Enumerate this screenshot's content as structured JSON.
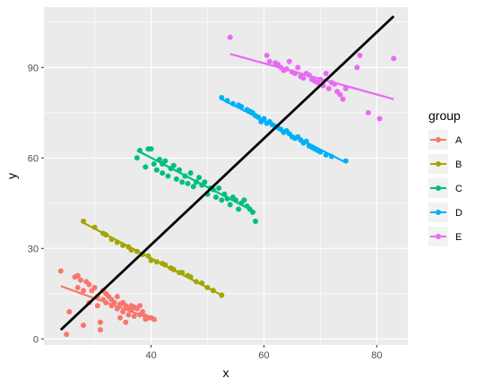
{
  "chart_data": {
    "type": "scatter",
    "xlabel": "x",
    "ylabel": "y",
    "xlim": [
      21,
      85.5
    ],
    "ylim": [
      -2,
      110
    ],
    "x_ticks": [
      40,
      60,
      80
    ],
    "y_ticks": [
      0,
      30,
      60,
      90
    ],
    "grid": true,
    "legend": {
      "title": "group",
      "position": "right"
    },
    "overall_line": {
      "x": [
        24,
        83
      ],
      "y": [
        3,
        107
      ],
      "color": "#000000"
    },
    "series": [
      {
        "name": "A",
        "color": "#F8766D",
        "fit": {
          "x": [
            24,
            41
          ],
          "y": [
            17.5,
            6
          ]
        },
        "points": [
          [
            24,
            22.5
          ],
          [
            25,
            1.5
          ],
          [
            25.5,
            9
          ],
          [
            26.5,
            20.5
          ],
          [
            27,
            21
          ],
          [
            27,
            17
          ],
          [
            27.5,
            19.5
          ],
          [
            28,
            16
          ],
          [
            28,
            4.5
          ],
          [
            28.5,
            19
          ],
          [
            29,
            12
          ],
          [
            29,
            18
          ],
          [
            29.5,
            16
          ],
          [
            30,
            17
          ],
          [
            30.5,
            11
          ],
          [
            30.5,
            14
          ],
          [
            31,
            3
          ],
          [
            31,
            5.5
          ],
          [
            31.5,
            16
          ],
          [
            31.5,
            13
          ],
          [
            32,
            12
          ],
          [
            32,
            15
          ],
          [
            32.5,
            14
          ],
          [
            33,
            11
          ],
          [
            33,
            13
          ],
          [
            33.5,
            12
          ],
          [
            34,
            14
          ],
          [
            34,
            10
          ],
          [
            34.5,
            7
          ],
          [
            34.5,
            11.5
          ],
          [
            35,
            12
          ],
          [
            35,
            9
          ],
          [
            35.5,
            11
          ],
          [
            35.5,
            5.5
          ],
          [
            36,
            10
          ],
          [
            36,
            8
          ],
          [
            36.5,
            11
          ],
          [
            36.5,
            9.5
          ],
          [
            37,
            10.5
          ],
          [
            37,
            7.5
          ],
          [
            37.5,
            10
          ],
          [
            38,
            8
          ],
          [
            38,
            11
          ],
          [
            38.5,
            9
          ],
          [
            39,
            6.5
          ],
          [
            39,
            7.5
          ],
          [
            39.5,
            7
          ],
          [
            40,
            7
          ],
          [
            40.5,
            6.5
          ]
        ]
      },
      {
        "name": "B",
        "color": "#A3A500",
        "fit": {
          "x": [
            28,
            52.5
          ],
          "y": [
            38.5,
            14.5
          ]
        },
        "points": [
          [
            28,
            39
          ],
          [
            30,
            37
          ],
          [
            31.5,
            35
          ],
          [
            32,
            34.5
          ],
          [
            33,
            33
          ],
          [
            34,
            32
          ],
          [
            35,
            31
          ],
          [
            36,
            30.5
          ],
          [
            36.5,
            29.5
          ],
          [
            37.5,
            29
          ],
          [
            38.5,
            28
          ],
          [
            39.5,
            27.5
          ],
          [
            40,
            26
          ],
          [
            41,
            25.5
          ],
          [
            42,
            25
          ],
          [
            42.5,
            24.5
          ],
          [
            43.5,
            23.5
          ],
          [
            44,
            23
          ],
          [
            45,
            22
          ],
          [
            45.5,
            22
          ],
          [
            46.5,
            21
          ],
          [
            47,
            20.5
          ],
          [
            48,
            19
          ],
          [
            49,
            18.5
          ],
          [
            50,
            17
          ],
          [
            51,
            16
          ],
          [
            52.5,
            14.5
          ]
        ]
      },
      {
        "name": "C",
        "color": "#00BF7D",
        "fit": {
          "x": [
            37.5,
            58.5
          ],
          "y": [
            62.5,
            42
          ]
        },
        "points": [
          [
            37.5,
            60
          ],
          [
            38,
            62.5
          ],
          [
            39,
            57
          ],
          [
            39.5,
            63
          ],
          [
            40,
            63
          ],
          [
            40.5,
            58
          ],
          [
            41,
            56
          ],
          [
            41.5,
            59.5
          ],
          [
            42,
            58
          ],
          [
            42,
            55
          ],
          [
            42.5,
            59
          ],
          [
            43,
            54
          ],
          [
            43.5,
            56.5
          ],
          [
            44,
            57.5
          ],
          [
            44.5,
            53
          ],
          [
            45,
            56
          ],
          [
            45.5,
            52
          ],
          [
            46,
            54
          ],
          [
            46.5,
            51.5
          ],
          [
            47,
            55
          ],
          [
            47.5,
            50.5
          ],
          [
            48,
            52
          ],
          [
            48.5,
            53.5
          ],
          [
            49,
            51
          ],
          [
            49.5,
            52
          ],
          [
            50,
            48
          ],
          [
            50.5,
            50
          ],
          [
            51,
            49.5
          ],
          [
            51.5,
            47
          ],
          [
            52,
            50
          ],
          [
            52.5,
            46
          ],
          [
            53,
            48
          ],
          [
            53.5,
            46.5
          ],
          [
            54,
            44.5
          ],
          [
            54.5,
            47
          ],
          [
            55,
            46
          ],
          [
            55.5,
            43
          ],
          [
            56,
            45
          ],
          [
            56.5,
            46
          ],
          [
            57,
            44
          ],
          [
            57.5,
            43
          ],
          [
            58,
            42
          ],
          [
            58.5,
            39
          ]
        ]
      },
      {
        "name": "D",
        "color": "#00B0F6",
        "fit": {
          "x": [
            52.5,
            74.5
          ],
          "y": [
            79.5,
            58.5
          ]
        },
        "points": [
          [
            52.5,
            80
          ],
          [
            53.5,
            79
          ],
          [
            54.5,
            78
          ],
          [
            55.5,
            77.5
          ],
          [
            56,
            77
          ],
          [
            57,
            76
          ],
          [
            57.5,
            75.5
          ],
          [
            58,
            75
          ],
          [
            58.5,
            74
          ],
          [
            59,
            73.5
          ],
          [
            59.5,
            72
          ],
          [
            60,
            73
          ],
          [
            60.5,
            71.5
          ],
          [
            61,
            72
          ],
          [
            61.5,
            71
          ],
          [
            62,
            70.5
          ],
          [
            62.5,
            70
          ],
          [
            63,
            69.5
          ],
          [
            63.5,
            68.5
          ],
          [
            64,
            69
          ],
          [
            64.5,
            68
          ],
          [
            65,
            67
          ],
          [
            65.5,
            66.5
          ],
          [
            66,
            67
          ],
          [
            66.5,
            66
          ],
          [
            67,
            65
          ],
          [
            67.5,
            65.5
          ],
          [
            68,
            64
          ],
          [
            68.5,
            63.5
          ],
          [
            69,
            63
          ],
          [
            69.5,
            62.5
          ],
          [
            70,
            62
          ],
          [
            71,
            61
          ],
          [
            72,
            60.5
          ],
          [
            74.5,
            59
          ]
        ]
      },
      {
        "name": "E",
        "color": "#E76BF3",
        "fit": {
          "x": [
            54,
            83
          ],
          "y": [
            94.5,
            79.5
          ]
        },
        "points": [
          [
            54,
            100
          ],
          [
            60.5,
            94
          ],
          [
            61,
            92
          ],
          [
            62,
            91.5
          ],
          [
            62.5,
            91
          ],
          [
            63,
            90
          ],
          [
            63.5,
            89
          ],
          [
            64,
            89.5
          ],
          [
            64.5,
            92
          ],
          [
            65,
            88.5
          ],
          [
            65.5,
            88
          ],
          [
            66,
            90
          ],
          [
            66.5,
            87
          ],
          [
            67,
            86.5
          ],
          [
            67.5,
            88
          ],
          [
            68,
            87.5
          ],
          [
            68.5,
            86
          ],
          [
            69,
            85.5
          ],
          [
            69.5,
            85
          ],
          [
            70,
            86
          ],
          [
            70.5,
            84
          ],
          [
            71,
            88
          ],
          [
            71.5,
            83
          ],
          [
            72,
            85
          ],
          [
            72.5,
            84.5
          ],
          [
            73,
            82
          ],
          [
            73.5,
            81
          ],
          [
            74,
            79.5
          ],
          [
            74.5,
            83
          ],
          [
            76.5,
            90
          ],
          [
            77,
            94
          ],
          [
            78.5,
            75
          ],
          [
            80.5,
            73
          ],
          [
            83,
            93
          ]
        ]
      }
    ]
  }
}
